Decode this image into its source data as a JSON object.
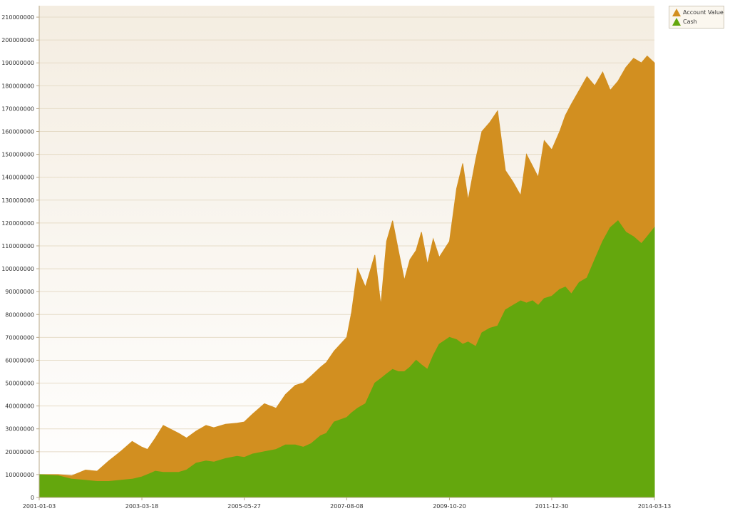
{
  "chart_data": {
    "type": "area",
    "title": "",
    "xlabel": "",
    "ylabel": "",
    "ylim": [
      0,
      215000000
    ],
    "xlim": [
      "2001-01-03",
      "2014-03-13"
    ],
    "grid": true,
    "legend_position": "top-right",
    "x_ticks": [
      "2001-01-03",
      "2003-03-18",
      "2005-05-27",
      "2007-08-08",
      "2009-10-20",
      "2011-12-30",
      "2014-03-13"
    ],
    "y_ticks": [
      "0",
      "10000000",
      "20000000",
      "30000000",
      "40000000",
      "50000000",
      "60000000",
      "70000000",
      "80000000",
      "90000000",
      "100000000",
      "110000000",
      "120000000",
      "130000000",
      "140000000",
      "150000000",
      "160000000",
      "170000000",
      "180000000",
      "190000000",
      "200000000",
      "210000000"
    ],
    "colors": {
      "plot_bg_top": "#f4ede1",
      "plot_bg_bottom": "#ffffff",
      "gridline": "#e6dcc8",
      "axis": "#b9a98a",
      "tick_label": "#333333"
    },
    "series": [
      {
        "name": "Account Value",
        "color": "#d28f20",
        "x": [
          "2001-01-03",
          "2001-06-01",
          "2001-09-15",
          "2002-01-01",
          "2002-04-01",
          "2002-07-01",
          "2002-10-01",
          "2003-01-01",
          "2003-03-18",
          "2003-05-01",
          "2003-07-01",
          "2003-09-01",
          "2004-01-01",
          "2004-03-01",
          "2004-05-15",
          "2004-08-01",
          "2004-10-01",
          "2005-01-01",
          "2005-04-01",
          "2005-05-27",
          "2005-08-01",
          "2005-11-01",
          "2006-02-01",
          "2006-04-15",
          "2006-07-01",
          "2006-09-01",
          "2006-11-01",
          "2007-01-15",
          "2007-03-01",
          "2007-05-01",
          "2007-08-08",
          "2007-09-15",
          "2007-11-01",
          "2008-01-01",
          "2008-03-15",
          "2008-05-01",
          "2008-06-15",
          "2008-08-01",
          "2008-09-15",
          "2008-11-01",
          "2008-12-15",
          "2009-02-01",
          "2009-03-15",
          "2009-05-01",
          "2009-06-15",
          "2009-08-01",
          "2009-10-20",
          "2009-12-15",
          "2010-02-01",
          "2010-03-15",
          "2010-05-15",
          "2010-07-01",
          "2010-09-01",
          "2010-11-01",
          "2011-01-01",
          "2011-03-01",
          "2011-05-01",
          "2011-06-15",
          "2011-08-01",
          "2011-09-15",
          "2011-11-01",
          "2011-12-30",
          "2012-03-01",
          "2012-04-15",
          "2012-06-01",
          "2012-08-01",
          "2012-10-01",
          "2012-12-01",
          "2013-02-01",
          "2013-04-01",
          "2013-06-01",
          "2013-08-01",
          "2013-10-01",
          "2013-12-01",
          "2014-01-15",
          "2014-03-13"
        ],
        "values": [
          10000000,
          10000000,
          9500000,
          12000000,
          11500000,
          16000000,
          20000000,
          24500000,
          22000000,
          21000000,
          26000000,
          31500000,
          28000000,
          26000000,
          29000000,
          31500000,
          30500000,
          32000000,
          32500000,
          33000000,
          36500000,
          41000000,
          39000000,
          45000000,
          49000000,
          50000000,
          53000000,
          57000000,
          59000000,
          64000000,
          70000000,
          81000000,
          100000000,
          92000000,
          106000000,
          84000000,
          112000000,
          121000000,
          108000000,
          95000000,
          104000000,
          108000000,
          116000000,
          102000000,
          113000000,
          105000000,
          112000000,
          135000000,
          146000000,
          130000000,
          148000000,
          160000000,
          164000000,
          169000000,
          143000000,
          138000000,
          132000000,
          150000000,
          145000000,
          140000000,
          156000000,
          152000000,
          160000000,
          167000000,
          172000000,
          178000000,
          184000000,
          180000000,
          186000000,
          178000000,
          182000000,
          188000000,
          192000000,
          190000000,
          193000000,
          190000000
        ]
      },
      {
        "name": "Cash",
        "color": "#64a70d",
        "x": [
          "2001-01-03",
          "2001-06-01",
          "2001-09-15",
          "2002-01-01",
          "2002-04-01",
          "2002-07-01",
          "2002-10-01",
          "2003-01-01",
          "2003-03-18",
          "2003-05-01",
          "2003-07-01",
          "2003-09-01",
          "2004-01-01",
          "2004-03-01",
          "2004-05-15",
          "2004-08-01",
          "2004-10-01",
          "2005-01-01",
          "2005-04-01",
          "2005-05-27",
          "2005-08-01",
          "2005-11-01",
          "2006-02-01",
          "2006-04-15",
          "2006-07-01",
          "2006-09-01",
          "2006-11-01",
          "2007-01-15",
          "2007-03-01",
          "2007-05-01",
          "2007-08-08",
          "2007-09-15",
          "2007-11-01",
          "2008-01-01",
          "2008-03-15",
          "2008-05-01",
          "2008-06-15",
          "2008-08-01",
          "2008-09-15",
          "2008-11-01",
          "2008-12-15",
          "2009-02-01",
          "2009-03-15",
          "2009-05-01",
          "2009-06-15",
          "2009-08-01",
          "2009-10-20",
          "2009-12-15",
          "2010-02-01",
          "2010-03-15",
          "2010-05-15",
          "2010-07-01",
          "2010-09-01",
          "2010-11-01",
          "2011-01-01",
          "2011-03-01",
          "2011-05-01",
          "2011-06-15",
          "2011-08-01",
          "2011-09-15",
          "2011-11-01",
          "2011-12-30",
          "2012-03-01",
          "2012-04-15",
          "2012-06-01",
          "2012-08-01",
          "2012-10-01",
          "2012-12-01",
          "2013-02-01",
          "2013-04-01",
          "2013-06-01",
          "2013-08-01",
          "2013-10-01",
          "2013-12-01",
          "2014-01-15",
          "2014-03-13"
        ],
        "values": [
          10000000,
          9500000,
          8000000,
          7500000,
          7000000,
          7000000,
          7500000,
          8000000,
          9000000,
          10000000,
          11500000,
          11000000,
          11000000,
          12000000,
          15000000,
          16000000,
          15500000,
          17000000,
          18000000,
          17500000,
          19000000,
          20000000,
          21000000,
          23000000,
          23000000,
          22000000,
          23500000,
          27000000,
          28000000,
          33000000,
          35000000,
          37000000,
          39000000,
          41000000,
          50000000,
          52000000,
          54000000,
          56000000,
          55000000,
          55000000,
          57000000,
          60000000,
          58000000,
          56000000,
          62000000,
          67000000,
          70000000,
          69000000,
          67000000,
          68000000,
          66000000,
          72000000,
          74000000,
          75000000,
          82000000,
          84000000,
          86000000,
          85000000,
          86000000,
          84000000,
          87000000,
          88000000,
          91000000,
          92000000,
          89000000,
          94000000,
          96000000,
          104000000,
          112000000,
          118000000,
          121000000,
          116000000,
          114000000,
          111000000,
          114000000,
          118000000
        ]
      }
    ]
  }
}
